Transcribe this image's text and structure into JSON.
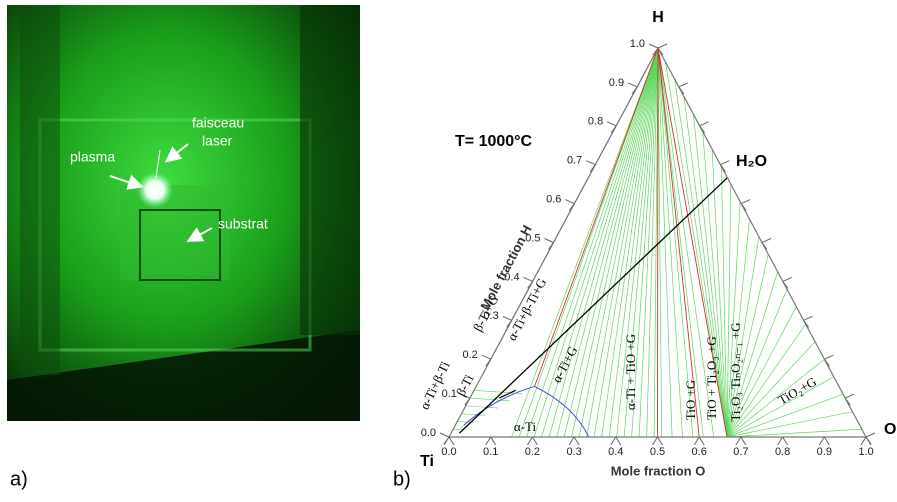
{
  "panel_a": {
    "label": "a)",
    "annotations": {
      "plasma": "plasma",
      "laser": [
        "faisceau",
        "laser"
      ],
      "substrate": "substrat"
    }
  },
  "panel_b": {
    "label": "b)",
    "temperature": "T= 1000°C",
    "corners": {
      "top": "H",
      "left": "Ti",
      "right": "O"
    },
    "h2o": "H₂O",
    "x_axis_title": "Mole fraction O",
    "y_axis_title": "Mole fraction H",
    "x_ticks": [
      "0.0",
      "0.1",
      "0.2",
      "0.3",
      "0.4",
      "0.5",
      "0.6",
      "0.7",
      "0.8",
      "0.9",
      "1.0"
    ],
    "y_ticks": [
      "0.0",
      "0.1",
      "0.2",
      "0.3",
      "0.4",
      "0.5",
      "0.6",
      "0.7",
      "0.8",
      "0.9",
      "1.0"
    ],
    "phase_labels": [
      "α-Ti",
      "α-Ti+G",
      "α-Ti + TiO +G",
      "TiO +G",
      "TiO + Ti₂O₃ +G",
      "Ti₂O₃ TiₙO₂ₙ₋₁ +G",
      "TiO₂+G",
      "α-Ti+β-Ti+G",
      "β-Ti+G",
      "α-Ti+β-Ti",
      "β-Ti"
    ]
  }
}
